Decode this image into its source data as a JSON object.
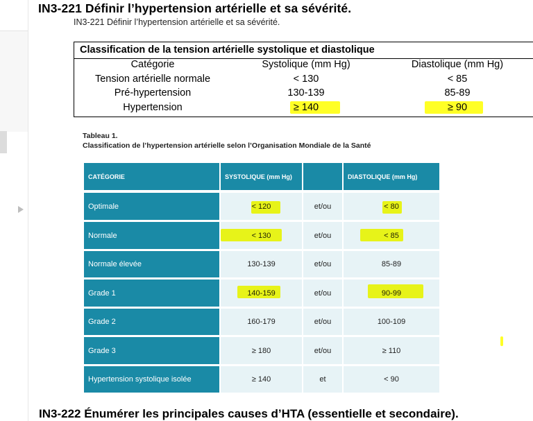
{
  "heading_top": "IN3-221 Définir l’hypertension artérielle et sa sévérité.",
  "heading_sub": "IN3-221 Définir l’hypertension artérielle et sa sévérité.",
  "classification_table": {
    "title": "Classification de la tension artérielle systolique et diastolique",
    "headers": [
      "Catégorie",
      "Systolique (mm Hg)",
      "Diastolique (mm Hg)"
    ],
    "rows": [
      [
        "Tension artérielle normale",
        "< 130",
        "< 85"
      ],
      [
        "Pré-hypertension",
        "130-139",
        "85-89"
      ],
      [
        "Hypertension",
        "≥ 140",
        "≥ 90"
      ]
    ]
  },
  "who_table": {
    "caption_label": "Tableau 1.",
    "caption_title": "Classification de l’hypertension artérielle selon l’Organisation Mondiale de la Santé",
    "headers": [
      "CATÉGORIE",
      "SYSTOLIQUE (mm Hg)",
      "",
      "DIASTOLIQUE (mm Hg)"
    ],
    "rows": [
      [
        "Optimale",
        "< 120",
        "et/ou",
        "< 80"
      ],
      [
        "Normale",
        "< 130",
        "et/ou",
        "< 85"
      ],
      [
        "Normale élevée",
        "130-139",
        "et/ou",
        "85-89"
      ],
      [
        "Grade 1",
        "140-159",
        "et/ou",
        "90-99"
      ],
      [
        "Grade 2",
        "160-179",
        "et/ou",
        "100-109"
      ],
      [
        "Grade 3",
        "≥ 180",
        "et/ou",
        "≥ 110"
      ],
      [
        "Hypertension systolique isolée",
        "≥ 140",
        "et",
        "< 90"
      ]
    ]
  },
  "heading_bottom": "IN3-222 Énumérer les principales causes d’HTA (essentielle et secondaire).",
  "colors": {
    "header_teal": "#1a8aa6",
    "value_cell": "#e7f3f6",
    "highlight": "#ffff00"
  }
}
